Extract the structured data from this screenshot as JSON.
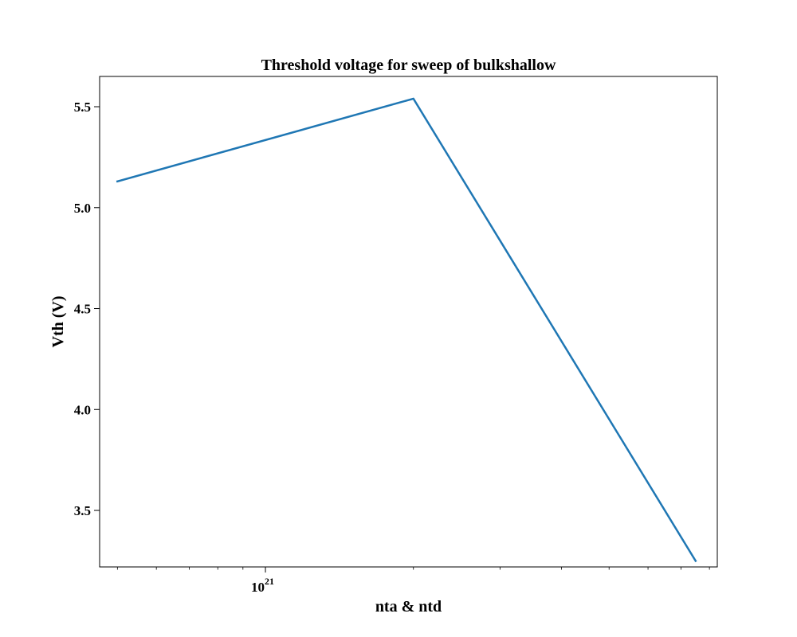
{
  "chart_data": {
    "type": "line",
    "title": "Threshold voltage for sweep of bulkshallow",
    "xlabel": "nta & ntd",
    "ylabel": "Vth (V)",
    "xscale": "log",
    "xlim": [
      4.6e+20,
      8.3e+21
    ],
    "ylim": [
      3.22,
      5.65
    ],
    "grid": false,
    "x_major_ticks": [
      {
        "value": 1e+21,
        "base": "10",
        "exponent": "21"
      }
    ],
    "x_minor_ticks": [
      5e+20,
      6e+20,
      7e+20,
      8e+20,
      9e+20,
      2e+21,
      3e+21,
      4e+21,
      5e+21,
      6e+21,
      7e+21,
      8e+21
    ],
    "y_ticks": [
      {
        "value": 3.5,
        "label": "3.5"
      },
      {
        "value": 4.0,
        "label": "4.0"
      },
      {
        "value": 4.5,
        "label": "4.5"
      },
      {
        "value": 5.0,
        "label": "5.0"
      },
      {
        "value": 5.5,
        "label": "5.5"
      }
    ],
    "series": [
      {
        "color": "#1f77b4",
        "x": [
          5e+20,
          2e+21,
          7.5e+21
        ],
        "y": [
          5.13,
          5.54,
          3.25
        ]
      }
    ]
  }
}
